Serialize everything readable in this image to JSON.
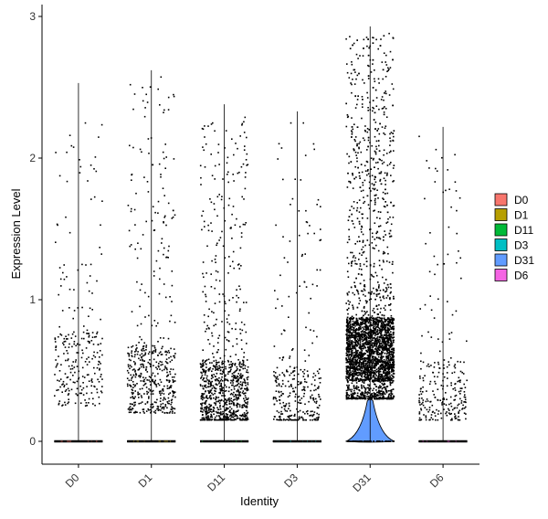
{
  "chart_data": {
    "type": "violin",
    "title": "",
    "xlabel": "Identity",
    "ylabel": "Expression Level",
    "ylim": [
      -0.15,
      3.05
    ],
    "yticks": [
      0,
      1,
      2,
      3
    ],
    "categories": [
      "D0",
      "D1",
      "D11",
      "D3",
      "D31",
      "D6"
    ],
    "colors": {
      "D0": "#F8766D",
      "D1": "#B79F00",
      "D11": "#00BA38",
      "D3": "#00BFC4",
      "D31": "#619CFF",
      "D6": "#F564E3"
    },
    "series": [
      {
        "name": "D0",
        "max": 2.53,
        "n_points": 260,
        "point_min": 0.25,
        "point_max": 2.45,
        "mode": 0.55,
        "zero_bulge": 0.0
      },
      {
        "name": "D1",
        "max": 2.62,
        "n_points": 520,
        "point_min": 0.2,
        "point_max": 2.6,
        "mode": 0.45,
        "zero_bulge": 0.0
      },
      {
        "name": "D11",
        "max": 2.38,
        "n_points": 950,
        "point_min": 0.15,
        "point_max": 2.3,
        "mode": 0.35,
        "zero_bulge": 0.0
      },
      {
        "name": "D3",
        "max": 2.33,
        "n_points": 330,
        "point_min": 0.15,
        "point_max": 2.3,
        "mode": 0.3,
        "zero_bulge": 0.0
      },
      {
        "name": "D31",
        "max": 2.93,
        "n_points": 3600,
        "point_min": 0.3,
        "point_max": 2.9,
        "mode": 0.65,
        "zero_bulge": 0.1
      },
      {
        "name": "D6",
        "max": 2.22,
        "n_points": 260,
        "point_min": 0.15,
        "point_max": 2.2,
        "mode": 0.35,
        "zero_bulge": 0.0
      }
    ],
    "legend": {
      "placement": "right",
      "items": [
        "D0",
        "D1",
        "D11",
        "D3",
        "D31",
        "D6"
      ]
    },
    "grid": false
  }
}
